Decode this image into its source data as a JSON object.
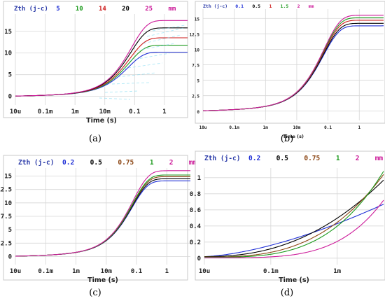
{
  "chart_data": [
    {
      "type": "line",
      "panel": "(a)",
      "legend_title": "Zth (j-c)",
      "unit": "mm",
      "xlabel": "Time (s)",
      "x_scale": "log",
      "xlim": [
        1e-05,
        6
      ],
      "ylim": [
        -2,
        19
      ],
      "xticks": [
        "10u",
        "0.1m",
        "1m",
        "10m",
        "0.1",
        "1"
      ],
      "yticks": [
        "0",
        "5",
        "10",
        "15"
      ],
      "series": [
        {
          "name": "5",
          "color": "#1f2fd6",
          "final": 10.2
        },
        {
          "name": "10",
          "color": "#1c9a1c",
          "final": 11.8
        },
        {
          "name": "14",
          "color": "#cc1a1a",
          "final": 13.5
        },
        {
          "name": "20",
          "color": "#000000",
          "final": 15.8
        },
        {
          "name": "25",
          "color": "#cc1a99",
          "final": 17.5
        }
      ]
    },
    {
      "type": "line",
      "panel": "(b)",
      "legend_title": "Zth (j-c)",
      "unit": "mm",
      "xlabel": "Time (s)",
      "x_scale": "log",
      "xlim": [
        1e-05,
        6
      ],
      "ylim": [
        -1.5,
        16.5
      ],
      "xticks": [
        "10u",
        "0.1m",
        "1m",
        "10m",
        "0.1",
        "1"
      ],
      "yticks": [
        "0",
        "2.5",
        "5",
        "7.5",
        "10",
        "12.5",
        "15"
      ],
      "series": [
        {
          "name": "0.1",
          "color": "#1f2fd6",
          "final": 13.8
        },
        {
          "name": "0.5",
          "color": "#000000",
          "final": 14.2
        },
        {
          "name": "1",
          "color": "#cc1a1a",
          "final": 14.7
        },
        {
          "name": "1.5",
          "color": "#1c9a1c",
          "final": 15.1
        },
        {
          "name": "2",
          "color": "#cc1a99",
          "final": 15.5
        }
      ]
    },
    {
      "type": "line",
      "panel": "(c)",
      "legend_title": "Zth (j-c)",
      "unit": "mm",
      "xlabel": "Time (s)",
      "x_scale": "log",
      "xlim": [
        1e-05,
        6
      ],
      "ylim": [
        -1.5,
        16.5
      ],
      "xticks": [
        "10u",
        "0.1m",
        "1m",
        "10m",
        "0.1",
        "1"
      ],
      "yticks": [
        "0",
        "2.5",
        "5",
        "7.5",
        "10",
        "12.5",
        "15"
      ],
      "series": [
        {
          "name": "0.2",
          "color": "#1f2fd6",
          "final": 14.1
        },
        {
          "name": "0.5",
          "color": "#000000",
          "final": 14.5
        },
        {
          "name": "0.75",
          "color": "#8b4513",
          "final": 14.9
        },
        {
          "name": "1",
          "color": "#1c9a1c",
          "final": 15.2
        },
        {
          "name": "2",
          "color": "#cc1a99",
          "final": 16.0
        }
      ]
    },
    {
      "type": "line",
      "panel": "(d)",
      "legend_title": "Zth (j-c)",
      "unit": "mm",
      "xlabel": "Time (s)",
      "x_scale": "log",
      "xlim": [
        1e-05,
        0.005
      ],
      "ylim": [
        -0.08,
        1.12
      ],
      "xticks": [
        "10u",
        "0.1m",
        "1m"
      ],
      "yticks": [
        "0",
        "0.2",
        "0.4",
        "0.6",
        "0.8",
        "1"
      ],
      "series": [
        {
          "name": "0.2",
          "color": "#1f2fd6",
          "end": 0.67
        },
        {
          "name": "0.5",
          "color": "#000000",
          "end": 0.97
        },
        {
          "name": "0.75",
          "color": "#8b4513",
          "end": 1.04
        },
        {
          "name": "1",
          "color": "#1c9a1c",
          "end": 1.08
        },
        {
          "name": "2",
          "color": "#cc1a99",
          "end": 0.72
        }
      ]
    }
  ]
}
